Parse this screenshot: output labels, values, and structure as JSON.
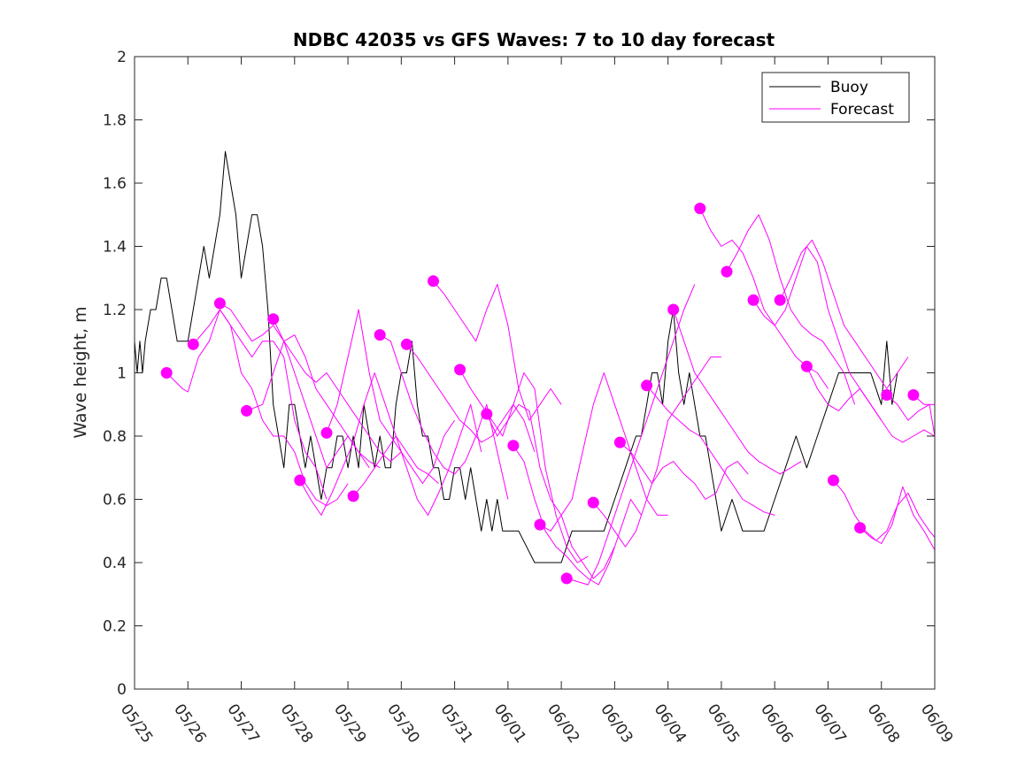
{
  "chart_data": {
    "type": "line",
    "title": "NDBC 42035 vs GFS Waves: 7 to 10 day forecast",
    "xlabel": "",
    "ylabel": "Wave height, m",
    "x_ticks": [
      "05/25",
      "05/26",
      "05/27",
      "05/28",
      "05/29",
      "05/30",
      "05/31",
      "06/01",
      "06/02",
      "06/03",
      "06/04",
      "06/05",
      "06/06",
      "06/07",
      "06/08",
      "06/09"
    ],
    "xlim": [
      0,
      15
    ],
    "ylim": [
      0,
      2
    ],
    "y_ticks": [
      0,
      0.2,
      0.4,
      0.6,
      0.8,
      1,
      1.2,
      1.4,
      1.6,
      1.8,
      2
    ],
    "y_tick_labels": [
      "0",
      "0.2",
      "0.4",
      "0.6",
      "0.8",
      "1",
      "1.2",
      "1.4",
      "1.6",
      "1.8",
      "2"
    ],
    "grid": false,
    "legend": {
      "position": "top-right",
      "entries": [
        "Buoy",
        "Forecast"
      ]
    },
    "colors": {
      "buoy": "#000000",
      "forecast": "#ff00ff"
    },
    "series": [
      {
        "name": "Buoy",
        "color": "#000000",
        "x": [
          0,
          0.05,
          0.1,
          0.15,
          0.2,
          0.3,
          0.4,
          0.5,
          0.6,
          0.7,
          0.8,
          0.9,
          1.0,
          1.1,
          1.2,
          1.3,
          1.4,
          1.5,
          1.6,
          1.7,
          1.8,
          1.9,
          2.0,
          2.1,
          2.2,
          2.3,
          2.4,
          2.5,
          2.6,
          2.7,
          2.8,
          2.9,
          3.0,
          3.1,
          3.2,
          3.3,
          3.4,
          3.5,
          3.6,
          3.7,
          3.8,
          3.9,
          4.0,
          4.1,
          4.2,
          4.3,
          4.4,
          4.5,
          4.6,
          4.7,
          4.8,
          4.9,
          5.0,
          5.1,
          5.2,
          5.3,
          5.4,
          5.5,
          5.6,
          5.7,
          5.8,
          5.9,
          6.0,
          6.1,
          6.2,
          6.3,
          6.4,
          6.5,
          6.6,
          6.7,
          6.8,
          6.9,
          7.0,
          7.2,
          7.5,
          7.8,
          8.0,
          8.2,
          8.4,
          8.6,
          8.8,
          9.0,
          9.2,
          9.4,
          9.5,
          9.6,
          9.7,
          9.8,
          9.9,
          10.0,
          10.1,
          10.2,
          10.3,
          10.4,
          10.5,
          10.6,
          10.7,
          10.8,
          10.9,
          11.0,
          11.2,
          11.4,
          11.6,
          11.8,
          12.0,
          12.2,
          12.4,
          12.6,
          12.8,
          13.0,
          13.2,
          13.4,
          13.6,
          13.8,
          14.0,
          14.1,
          14.2,
          14.3
        ],
        "values": [
          1.1,
          1.0,
          1.1,
          1.0,
          1.1,
          1.2,
          1.2,
          1.3,
          1.3,
          1.2,
          1.1,
          1.1,
          1.1,
          1.2,
          1.3,
          1.4,
          1.3,
          1.4,
          1.5,
          1.7,
          1.6,
          1.5,
          1.3,
          1.4,
          1.5,
          1.5,
          1.4,
          1.2,
          0.9,
          0.8,
          0.7,
          0.9,
          0.9,
          0.8,
          0.7,
          0.8,
          0.7,
          0.6,
          0.7,
          0.7,
          0.8,
          0.8,
          0.7,
          0.8,
          0.7,
          0.9,
          0.8,
          0.7,
          0.8,
          0.7,
          0.7,
          0.9,
          1.0,
          1.0,
          1.1,
          0.9,
          0.8,
          0.8,
          0.7,
          0.7,
          0.6,
          0.6,
          0.7,
          0.7,
          0.6,
          0.7,
          0.6,
          0.5,
          0.6,
          0.5,
          0.6,
          0.5,
          0.5,
          0.5,
          0.4,
          0.4,
          0.4,
          0.5,
          0.5,
          0.5,
          0.5,
          0.6,
          0.7,
          0.8,
          0.8,
          0.9,
          1.0,
          1.0,
          0.9,
          1.1,
          1.2,
          1.0,
          0.9,
          1.0,
          0.9,
          0.8,
          0.8,
          0.7,
          0.6,
          0.5,
          0.6,
          0.5,
          0.5,
          0.5,
          0.6,
          0.7,
          0.8,
          0.7,
          0.8,
          0.9,
          1.0,
          1.0,
          1.0,
          1.0,
          0.9,
          1.1,
          0.9,
          1.0
        ]
      },
      {
        "name": "Forecast",
        "color": "#ff00ff",
        "x": [
          0.6,
          0.9,
          1.0,
          1.2,
          1.4,
          1.6,
          1.8,
          2.0,
          2.2,
          2.4,
          2.6,
          2.8,
          3.0,
          3.2,
          3.4,
          3.6
        ],
        "values": [
          1.0,
          0.95,
          0.94,
          1.05,
          1.1,
          1.2,
          1.15,
          1.1,
          1.05,
          1.1,
          1.1,
          1.05,
          0.85,
          0.75,
          0.7,
          0.6
        ]
      },
      {
        "name": "Forecast",
        "x": [
          1.1,
          1.4,
          1.6,
          1.8,
          2.0,
          2.2,
          2.4,
          2.6,
          2.8,
          3.0,
          3.2,
          3.4,
          3.6,
          3.8,
          4.0
        ],
        "values": [
          1.09,
          1.15,
          1.2,
          1.15,
          1.0,
          0.95,
          0.85,
          0.8,
          0.8,
          0.75,
          0.65,
          0.6,
          0.58,
          0.6,
          0.65
        ]
      },
      {
        "name": "Forecast",
        "x": [
          1.6,
          1.8,
          2.0,
          2.2,
          2.4,
          2.6,
          2.8,
          3.0,
          3.2,
          3.4,
          3.6,
          3.8,
          4.0,
          4.2,
          4.4
        ],
        "values": [
          1.22,
          1.2,
          1.15,
          1.1,
          1.12,
          1.15,
          1.1,
          1.0,
          0.9,
          0.8,
          0.7,
          0.75,
          0.8,
          0.75,
          0.7
        ]
      },
      {
        "name": "Forecast",
        "x": [
          2.1,
          2.4,
          2.6,
          2.8,
          3.0,
          3.2,
          3.4,
          3.6,
          3.8,
          4.0,
          4.2,
          4.4,
          4.6
        ],
        "values": [
          0.88,
          0.9,
          1.0,
          1.1,
          1.12,
          1.05,
          0.95,
          0.9,
          0.85,
          0.8,
          0.75,
          0.72,
          0.7
        ]
      },
      {
        "name": "Forecast",
        "x": [
          2.6,
          2.8,
          3.0,
          3.2,
          3.4,
          3.6,
          3.8,
          4.0,
          4.2,
          4.4,
          4.6,
          4.8,
          5.0
        ],
        "values": [
          1.17,
          1.1,
          1.05,
          1.0,
          0.97,
          1.0,
          0.95,
          0.9,
          0.85,
          0.8,
          0.75,
          0.72,
          0.75
        ]
      },
      {
        "name": "Forecast",
        "x": [
          3.1,
          3.3,
          3.5,
          3.7,
          3.9,
          4.1,
          4.3,
          4.5,
          4.7,
          4.9,
          5.1,
          5.3,
          5.5,
          5.7
        ],
        "values": [
          0.66,
          0.6,
          0.55,
          0.62,
          0.7,
          0.78,
          0.9,
          1.0,
          0.9,
          0.8,
          0.75,
          0.7,
          0.68,
          0.65
        ]
      },
      {
        "name": "Forecast",
        "x": [
          3.6,
          3.8,
          4.0,
          4.2,
          4.4,
          4.6,
          4.8,
          5.0,
          5.2,
          5.4,
          5.6,
          5.8,
          6.0
        ],
        "values": [
          0.81,
          0.9,
          1.05,
          1.2,
          1.0,
          0.85,
          0.8,
          0.75,
          0.7,
          0.65,
          0.7,
          0.8,
          0.85
        ]
      },
      {
        "name": "Forecast",
        "x": [
          4.1,
          4.3,
          4.5,
          4.7,
          4.9,
          5.1,
          5.3,
          5.5,
          5.7,
          5.9,
          6.1,
          6.3,
          6.5
        ],
        "values": [
          0.61,
          0.65,
          0.7,
          0.75,
          0.8,
          0.7,
          0.6,
          0.55,
          0.62,
          0.7,
          0.8,
          0.9,
          0.75
        ]
      },
      {
        "name": "Forecast",
        "x": [
          4.6,
          4.8,
          5.0,
          5.2,
          5.4,
          5.6,
          5.8,
          6.0,
          6.2,
          6.4,
          6.6,
          6.8,
          7.0
        ],
        "values": [
          1.12,
          1.1,
          1.0,
          0.9,
          0.82,
          0.75,
          0.7,
          0.68,
          0.72,
          0.8,
          0.9,
          0.75,
          0.6
        ]
      },
      {
        "name": "Forecast",
        "x": [
          5.1,
          5.3,
          5.5,
          5.7,
          5.9,
          6.1,
          6.3,
          6.5,
          6.7,
          6.9,
          7.1,
          7.3,
          7.5
        ],
        "values": [
          1.09,
          1.05,
          1.0,
          0.95,
          0.9,
          0.85,
          0.82,
          0.78,
          0.8,
          0.85,
          0.9,
          0.85,
          0.75
        ]
      },
      {
        "name": "Forecast",
        "x": [
          5.6,
          5.8,
          6.0,
          6.2,
          6.4,
          6.6,
          6.8,
          7.0,
          7.2,
          7.4,
          7.6,
          7.8,
          8.0
        ],
        "values": [
          1.29,
          1.25,
          1.2,
          1.15,
          1.1,
          1.2,
          1.28,
          1.15,
          0.95,
          0.85,
          0.9,
          0.95,
          0.9
        ]
      },
      {
        "name": "Forecast",
        "x": [
          6.1,
          6.3,
          6.5,
          6.7,
          6.9,
          7.1,
          7.3,
          7.5,
          7.7,
          7.9,
          8.1,
          8.3,
          8.5
        ],
        "values": [
          1.01,
          0.95,
          0.9,
          0.85,
          0.8,
          0.9,
          1.0,
          0.95,
          0.7,
          0.55,
          0.45,
          0.4,
          0.42
        ]
      },
      {
        "name": "Forecast",
        "x": [
          6.6,
          6.8,
          7.0,
          7.2,
          7.4,
          7.6,
          7.8,
          8.0,
          8.2,
          8.4,
          8.6,
          8.8,
          9.0
        ],
        "values": [
          0.87,
          0.8,
          0.85,
          0.9,
          0.88,
          0.7,
          0.6,
          0.55,
          0.45,
          0.4,
          0.35,
          0.38,
          0.45
        ]
      },
      {
        "name": "Forecast",
        "x": [
          7.1,
          7.3,
          7.5,
          7.7,
          7.9,
          8.1,
          8.3,
          8.5,
          8.7,
          8.9,
          9.1,
          9.3,
          9.5
        ],
        "values": [
          0.77,
          0.72,
          0.6,
          0.5,
          0.45,
          0.42,
          0.38,
          0.35,
          0.33,
          0.4,
          0.5,
          0.6,
          0.55
        ]
      },
      {
        "name": "Forecast",
        "x": [
          7.6,
          7.8,
          8.0,
          8.2,
          8.4,
          8.6,
          8.8,
          9.0,
          9.2,
          9.4,
          9.6,
          9.8,
          10.0
        ],
        "values": [
          0.52,
          0.5,
          0.55,
          0.6,
          0.75,
          0.9,
          1.0,
          0.9,
          0.8,
          0.7,
          0.6,
          0.55,
          0.55
        ]
      },
      {
        "name": "Forecast",
        "x": [
          8.1,
          8.3,
          8.5,
          8.7,
          8.9,
          9.1,
          9.3,
          9.5,
          9.7,
          9.9,
          10.1,
          10.3,
          10.5
        ],
        "values": [
          0.35,
          0.34,
          0.33,
          0.4,
          0.5,
          0.6,
          0.7,
          0.8,
          0.9,
          1.0,
          1.1,
          1.2,
          1.28
        ]
      },
      {
        "name": "Forecast",
        "x": [
          8.6,
          8.8,
          9.0,
          9.2,
          9.4,
          9.6,
          9.8,
          10.0,
          10.2,
          10.4,
          10.6,
          10.8,
          11.0
        ],
        "values": [
          0.59,
          0.55,
          0.5,
          0.45,
          0.5,
          0.6,
          0.7,
          0.85,
          0.9,
          0.95,
          1.0,
          1.05,
          1.05
        ]
      },
      {
        "name": "Forecast",
        "x": [
          9.1,
          9.3,
          9.5,
          9.7,
          9.9,
          10.1,
          10.3,
          10.5,
          10.7,
          10.9,
          11.1,
          11.3,
          11.5
        ],
        "values": [
          0.78,
          0.75,
          0.7,
          0.65,
          0.7,
          0.72,
          0.68,
          0.65,
          0.6,
          0.62,
          0.7,
          0.72,
          0.68
        ]
      },
      {
        "name": "Forecast",
        "x": [
          9.6,
          9.8,
          10.0,
          10.2,
          10.4,
          10.6,
          10.8,
          11.0,
          11.2,
          11.4,
          11.6,
          11.8,
          12.0
        ],
        "values": [
          0.96,
          0.92,
          0.88,
          0.85,
          0.82,
          0.8,
          0.75,
          0.7,
          0.65,
          0.6,
          0.58,
          0.56,
          0.55
        ]
      },
      {
        "name": "Forecast",
        "x": [
          10.1,
          10.3,
          10.5,
          10.7,
          10.9,
          11.1,
          11.3,
          11.5,
          11.7,
          11.9,
          12.1,
          12.3,
          12.5
        ],
        "values": [
          1.2,
          1.1,
          1.0,
          0.95,
          0.9,
          0.85,
          0.8,
          0.75,
          0.72,
          0.7,
          0.68,
          0.7,
          0.72
        ]
      },
      {
        "name": "Forecast",
        "x": [
          10.6,
          10.8,
          11.0,
          11.2,
          11.4,
          11.6,
          11.8,
          12.0,
          12.2,
          12.4,
          12.6,
          12.8,
          13.0
        ],
        "values": [
          1.52,
          1.45,
          1.4,
          1.42,
          1.38,
          1.3,
          1.2,
          1.15,
          1.1,
          1.05,
          1.02,
          1.0,
          0.95
        ]
      },
      {
        "name": "Forecast",
        "x": [
          11.1,
          11.3,
          11.5,
          11.7,
          11.9,
          12.1,
          12.3,
          12.5,
          12.7,
          12.9,
          13.1,
          13.3,
          13.5
        ],
        "values": [
          1.32,
          1.38,
          1.45,
          1.5,
          1.42,
          1.3,
          1.2,
          1.15,
          1.12,
          1.1,
          1.05,
          1.0,
          0.9
        ]
      },
      {
        "name": "Forecast",
        "x": [
          11.6,
          11.8,
          12.0,
          12.2,
          12.4,
          12.6,
          12.8,
          13.0,
          13.2,
          13.4,
          13.6,
          13.8,
          14.0
        ],
        "values": [
          1.23,
          1.18,
          1.15,
          1.2,
          1.3,
          1.4,
          1.35,
          1.2,
          1.1,
          1.0,
          0.95,
          0.9,
          0.85
        ]
      },
      {
        "name": "Forecast",
        "x": [
          12.1,
          12.3,
          12.5,
          12.7,
          12.9,
          13.1,
          13.3,
          13.5,
          13.7,
          13.9,
          14.1,
          14.3,
          14.5
        ],
        "values": [
          1.23,
          1.3,
          1.38,
          1.42,
          1.35,
          1.25,
          1.15,
          1.1,
          1.05,
          1.0,
          0.95,
          1.0,
          1.05
        ]
      },
      {
        "name": "Forecast",
        "x": [
          12.6,
          12.8,
          13.0,
          13.2,
          13.4,
          13.6,
          13.8,
          14.0,
          14.2,
          14.4,
          14.6,
          14.8,
          15.0
        ],
        "values": [
          1.02,
          0.95,
          0.9,
          0.88,
          0.92,
          0.95,
          0.9,
          0.85,
          0.8,
          0.78,
          0.8,
          0.82,
          0.8
        ]
      },
      {
        "name": "Forecast",
        "x": [
          13.1,
          13.3,
          13.5,
          13.7,
          13.9,
          14.1,
          14.3,
          14.5,
          14.7,
          14.9,
          15.0
        ],
        "values": [
          0.66,
          0.62,
          0.55,
          0.5,
          0.47,
          0.5,
          0.58,
          0.62,
          0.55,
          0.5,
          0.48
        ]
      },
      {
        "name": "Forecast",
        "x": [
          13.6,
          13.8,
          14.0,
          14.2,
          14.4,
          14.6,
          14.8,
          15.0
        ],
        "values": [
          0.51,
          0.48,
          0.46,
          0.52,
          0.64,
          0.55,
          0.5,
          0.44
        ]
      },
      {
        "name": "Forecast",
        "x": [
          14.1,
          14.3,
          14.5,
          14.7,
          14.9,
          15.0
        ],
        "values": [
          0.93,
          0.9,
          0.85,
          0.88,
          0.9,
          0.8
        ]
      },
      {
        "name": "Forecast",
        "x": [
          14.6,
          14.8,
          15.0
        ],
        "values": [
          0.93,
          0.9,
          0.9
        ]
      }
    ],
    "forecast_start_markers": {
      "x": [
        0.6,
        1.1,
        1.6,
        2.1,
        2.6,
        3.1,
        3.6,
        4.1,
        4.6,
        5.1,
        5.6,
        6.1,
        6.6,
        7.1,
        7.6,
        8.1,
        8.6,
        9.1,
        9.6,
        10.1,
        10.6,
        11.1,
        11.6,
        12.1,
        12.6,
        13.1,
        13.6,
        14.1,
        14.6
      ],
      "values": [
        1.0,
        1.09,
        1.22,
        0.88,
        1.17,
        0.66,
        0.81,
        0.61,
        1.12,
        1.09,
        1.29,
        1.01,
        0.87,
        0.77,
        0.52,
        0.35,
        0.59,
        0.78,
        0.96,
        1.2,
        1.52,
        1.32,
        1.23,
        1.23,
        1.02,
        0.66,
        0.51,
        0.93,
        0.93
      ]
    }
  }
}
